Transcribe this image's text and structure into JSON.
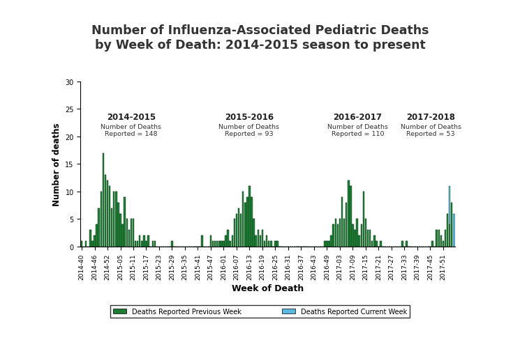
{
  "chart_data": {
    "type": "bar",
    "title": "Number of Influenza-Associated Pediatric Deaths\nby Week of Death: 2014-2015 season to present",
    "x_label": "Week of Death",
    "y_label": "Number of deaths",
    "annotations": [
      {
        "title": "2014-2015",
        "text": "Number of Deaths\nReported = 148"
      },
      {
        "title": "2015-2016",
        "text": "Number of Deaths\nReported = 93"
      },
      {
        "title": "2016-2017",
        "text": "Number of Deaths\nReported = 110"
      },
      {
        "title": "2017-2018",
        "text": "Number of Deaths\nReported = 53"
      }
    ],
    "categories": [
      "2014-40",
      null,
      null,
      null,
      null,
      null,
      "2014-46",
      null,
      null,
      null,
      null,
      null,
      "2014-52",
      null,
      null,
      null,
      null,
      null,
      "2015-05",
      null,
      null,
      null,
      null,
      null,
      "2015-11",
      null,
      null,
      null,
      null,
      null,
      "2015-17",
      null,
      null,
      null,
      null,
      null,
      "2015-23",
      null,
      null,
      null,
      null,
      null,
      "2015-29",
      null,
      null,
      null,
      null,
      null,
      "2015-35",
      null,
      null,
      null,
      null,
      null,
      "2015-41",
      null,
      null,
      null,
      null,
      null,
      "2015-47",
      null,
      null,
      null,
      null,
      null,
      "2016-01",
      null,
      null,
      null,
      null,
      null,
      "2016-07",
      null,
      null,
      null,
      null,
      null,
      "2016-13",
      null,
      null,
      null,
      null,
      null,
      "2016-19",
      null,
      null,
      null,
      null,
      null,
      "2016-25",
      null,
      null,
      null,
      null,
      null,
      "2016-31",
      null,
      null,
      null,
      null,
      null,
      "2016-37",
      null,
      null,
      null,
      null,
      null,
      "2016-43",
      null,
      null,
      null,
      null,
      null,
      "2016-49",
      null,
      null,
      null,
      null,
      null,
      "2017-03",
      null,
      null,
      null,
      null,
      null,
      "2017-09",
      null,
      null,
      null,
      null,
      null,
      "2017-15",
      null,
      null,
      null,
      null,
      null,
      "2017-21",
      null,
      null,
      null,
      null,
      null,
      "2017-27",
      null,
      null,
      null,
      null,
      null,
      "2017-33",
      null,
      null,
      null,
      null,
      null,
      "2017-39",
      null,
      null,
      null,
      null,
      null,
      "2017-45",
      null,
      null,
      null,
      null,
      null,
      "2017-51",
      null,
      null,
      null,
      null,
      null
    ],
    "series": [
      {
        "name": "Deaths Reported Previous Week",
        "color": "#1e7b34",
        "values": [
          1,
          0,
          1,
          0,
          3,
          1,
          2,
          4,
          7,
          10,
          17,
          13,
          12,
          11,
          7,
          10,
          10,
          8,
          6,
          4,
          9,
          5,
          3,
          5,
          5,
          1,
          1,
          2,
          1,
          2,
          1,
          2,
          0,
          1,
          1,
          0,
          0,
          0,
          0,
          0,
          0,
          0,
          1,
          0,
          0,
          0,
          0,
          0,
          0,
          0,
          0,
          0,
          0,
          0,
          0,
          0,
          2,
          0,
          0,
          0,
          2,
          1,
          1,
          1,
          1,
          1,
          1,
          2,
          3,
          1,
          2,
          5,
          6,
          7,
          6,
          10,
          8,
          9,
          11,
          9,
          5,
          2,
          3,
          2,
          3,
          1,
          2,
          1,
          1,
          0,
          1,
          1,
          0,
          0,
          0,
          0,
          0,
          0,
          0,
          0,
          0,
          0,
          0,
          0,
          0,
          0,
          0,
          0,
          0,
          0,
          0,
          0,
          0,
          1,
          1,
          1,
          2,
          4,
          5,
          4,
          5,
          9,
          5,
          8,
          12,
          11,
          4,
          3,
          5,
          2,
          4,
          10,
          5,
          3,
          3,
          1,
          2,
          1,
          0,
          1,
          0,
          0,
          0,
          0,
          0,
          0,
          0,
          0,
          0,
          1,
          0,
          1,
          0,
          0,
          0,
          0,
          0,
          0,
          0,
          0,
          0,
          0,
          0,
          1,
          0,
          3,
          3,
          2,
          1,
          3,
          6,
          4,
          8,
          0
        ]
      },
      {
        "name": "Deaths Reported Current Week",
        "color": "#5bb8e0",
        "values": [
          0,
          0,
          0,
          0,
          0,
          0,
          0,
          0,
          0,
          0,
          0,
          0,
          0,
          0,
          0,
          0,
          0,
          0,
          0,
          0,
          0,
          0,
          0,
          0,
          0,
          0,
          0,
          0,
          0,
          0,
          0,
          0,
          0,
          0,
          0,
          0,
          0,
          0,
          0,
          0,
          0,
          0,
          0,
          0,
          0,
          0,
          0,
          0,
          0,
          0,
          0,
          0,
          0,
          0,
          0,
          0,
          0,
          0,
          0,
          0,
          0,
          0,
          0,
          0,
          0,
          0,
          0,
          0,
          0,
          0,
          0,
          0,
          0,
          0,
          0,
          0,
          0,
          0,
          0,
          0,
          0,
          0,
          0,
          0,
          0,
          0,
          0,
          0,
          0,
          0,
          0,
          0,
          0,
          0,
          0,
          0,
          0,
          0,
          0,
          0,
          0,
          0,
          0,
          0,
          0,
          0,
          0,
          0,
          0,
          0,
          0,
          0,
          0,
          0,
          0,
          0,
          0,
          0,
          0,
          0,
          0,
          0,
          0,
          0,
          0,
          0,
          0,
          0,
          0,
          0,
          0,
          0,
          0,
          0,
          0,
          0,
          0,
          0,
          0,
          0,
          0,
          0,
          0,
          0,
          0,
          0,
          0,
          0,
          0,
          0,
          0,
          0,
          0,
          0,
          0,
          0,
          0,
          0,
          0,
          0,
          0,
          0,
          0,
          0,
          0,
          0,
          0,
          0,
          0,
          0,
          0,
          7,
          0,
          6
        ]
      }
    ],
    "stacked": true,
    "ylim": [
      0,
      30
    ],
    "yticks": [
      0,
      5,
      10,
      15,
      20,
      25,
      30
    ],
    "grid": false,
    "legend": "lower center"
  }
}
